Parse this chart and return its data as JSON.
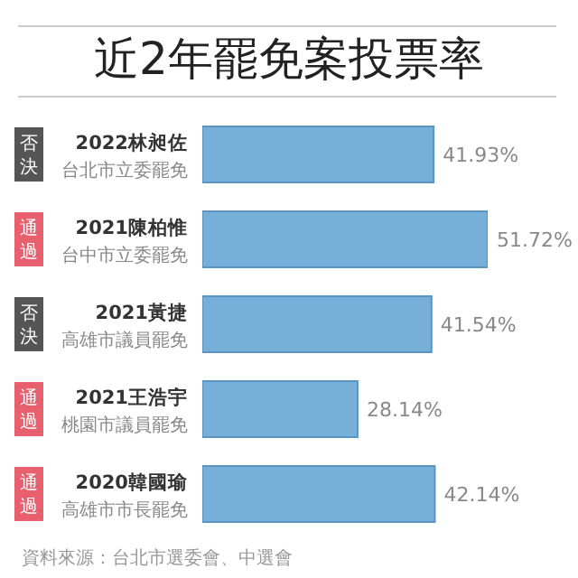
{
  "chart_data": {
    "type": "bar",
    "orientation": "horizontal",
    "title": "近2年罷免案投票率",
    "categories": [
      "2022林昶佐",
      "2021陳柏惟",
      "2021黃捷",
      "2021王浩宇",
      "2020韓國瑜"
    ],
    "values": [
      41.93,
      51.72,
      41.54,
      28.14,
      42.14
    ],
    "value_labels": [
      "41.93%",
      "51.72%",
      "41.54%",
      "28.14%",
      "42.14%"
    ],
    "color": "#77afd8",
    "tick_labels": "y",
    "annotations": [
      "否決",
      "台北市立委罷免",
      "通過",
      "台中市立委罷免",
      "否決",
      "高雄市議員罷免",
      "通過",
      "桃園市議員罷免",
      "通過",
      "高雄市市長罷免",
      "資料來源：台北市選委會、中選會"
    ]
  }
}
